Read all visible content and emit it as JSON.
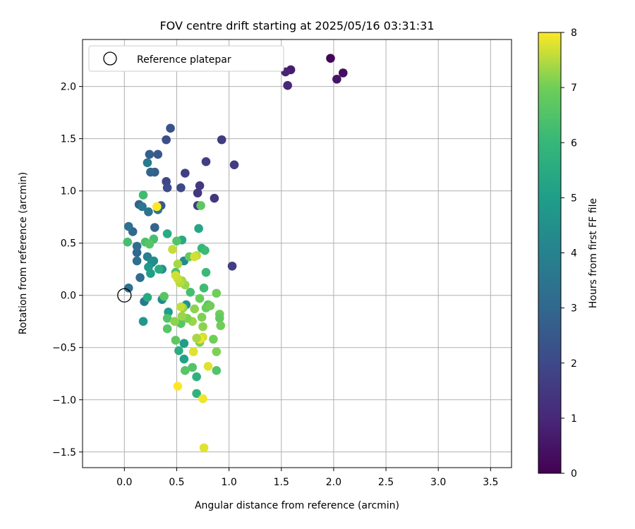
{
  "chart_data": {
    "type": "scatter",
    "title": "FOV centre drift starting at 2025/05/16 03:31:31",
    "xlabel": "Angular distance from reference (arcmin)",
    "ylabel": "Rotation from reference (arcmin)",
    "colorbar_label": "Hours from first FF file",
    "xlim": [
      -0.4,
      3.7
    ],
    "ylim": [
      -1.65,
      2.45
    ],
    "xticks": [
      "0.0",
      "0.5",
      "1.0",
      "1.5",
      "2.0",
      "2.5",
      "3.0",
      "3.5"
    ],
    "yticks": [
      "−1.5",
      "−1.0",
      "−0.5",
      "0.0",
      "0.5",
      "1.0",
      "1.5",
      "2.0"
    ],
    "colorbar_ticks": [
      "0",
      "1",
      "2",
      "3",
      "4",
      "5",
      "6",
      "7",
      "8"
    ],
    "colorbar_range": [
      0,
      8
    ],
    "colormap": "viridis",
    "grid": true,
    "legend": {
      "position": "top-left",
      "label": "Reference platepar"
    },
    "reference_point": {
      "x": 0.0,
      "y": 0.0
    },
    "points": [
      {
        "x": 1.97,
        "y": 2.27,
        "h": 0.1
      },
      {
        "x": 2.09,
        "y": 2.13,
        "h": 0.3
      },
      {
        "x": 2.03,
        "y": 2.07,
        "h": 0.5
      },
      {
        "x": 1.59,
        "y": 2.16,
        "h": 0.7
      },
      {
        "x": 1.54,
        "y": 2.14,
        "h": 0.9
      },
      {
        "x": 1.56,
        "y": 2.01,
        "h": 1.0
      },
      {
        "x": 0.93,
        "y": 1.49,
        "h": 1.6
      },
      {
        "x": 1.05,
        "y": 1.25,
        "h": 1.6
      },
      {
        "x": 0.78,
        "y": 1.28,
        "h": 1.7
      },
      {
        "x": 0.58,
        "y": 1.17,
        "h": 1.7
      },
      {
        "x": 0.72,
        "y": 1.05,
        "h": 1.5
      },
      {
        "x": 0.7,
        "y": 0.98,
        "h": 1.4
      },
      {
        "x": 0.86,
        "y": 0.93,
        "h": 1.4
      },
      {
        "x": 0.7,
        "y": 0.86,
        "h": 1.5
      },
      {
        "x": 1.03,
        "y": 0.28,
        "h": 1.6
      },
      {
        "x": 0.54,
        "y": 1.03,
        "h": 2.0
      },
      {
        "x": 0.4,
        "y": 1.09,
        "h": 1.9
      },
      {
        "x": 0.41,
        "y": 1.03,
        "h": 2.1
      },
      {
        "x": 0.44,
        "y": 1.6,
        "h": 2.3
      },
      {
        "x": 0.4,
        "y": 1.49,
        "h": 2.2
      },
      {
        "x": 0.32,
        "y": 1.35,
        "h": 2.5
      },
      {
        "x": 0.24,
        "y": 1.35,
        "h": 2.7
      },
      {
        "x": 0.29,
        "y": 1.18,
        "h": 2.7
      },
      {
        "x": 0.25,
        "y": 1.18,
        "h": 2.9
      },
      {
        "x": 0.35,
        "y": 0.86,
        "h": 2.5
      },
      {
        "x": 0.14,
        "y": 0.87,
        "h": 2.8
      },
      {
        "x": 0.29,
        "y": 0.65,
        "h": 2.9
      },
      {
        "x": 0.08,
        "y": 0.61,
        "h": 3.0
      },
      {
        "x": 0.12,
        "y": 0.41,
        "h": 3.0
      },
      {
        "x": 0.12,
        "y": 0.47,
        "h": 3.2
      },
      {
        "x": 0.12,
        "y": 0.33,
        "h": 3.3
      },
      {
        "x": 0.04,
        "y": 0.66,
        "h": 3.4
      },
      {
        "x": 0.15,
        "y": 0.17,
        "h": 3.2
      },
      {
        "x": 0.04,
        "y": 0.07,
        "h": 3.3
      },
      {
        "x": 0.23,
        "y": 0.8,
        "h": 3.5
      },
      {
        "x": 0.22,
        "y": 1.27,
        "h": 3.7
      },
      {
        "x": 0.17,
        "y": 0.85,
        "h": 3.5
      },
      {
        "x": 0.32,
        "y": 0.82,
        "h": 3.6
      },
      {
        "x": 0.19,
        "y": -0.06,
        "h": 3.6
      },
      {
        "x": 0.22,
        "y": 0.37,
        "h": 3.9
      },
      {
        "x": 0.26,
        "y": 0.31,
        "h": 4.2
      },
      {
        "x": 0.28,
        "y": 0.33,
        "h": 4.4
      },
      {
        "x": 0.36,
        "y": 0.25,
        "h": 4.5
      },
      {
        "x": 0.36,
        "y": -0.04,
        "h": 4.4
      },
      {
        "x": 0.57,
        "y": 0.33,
        "h": 4.3
      },
      {
        "x": 0.59,
        "y": -0.09,
        "h": 4.6
      },
      {
        "x": 0.18,
        "y": -0.25,
        "h": 4.8
      },
      {
        "x": 0.23,
        "y": 0.27,
        "h": 4.8
      },
      {
        "x": 0.25,
        "y": 0.21,
        "h": 5.0
      },
      {
        "x": 0.42,
        "y": -0.16,
        "h": 5.0
      },
      {
        "x": 0.57,
        "y": -0.46,
        "h": 5.0
      },
      {
        "x": 0.57,
        "y": -0.61,
        "h": 5.1
      },
      {
        "x": 0.41,
        "y": 0.59,
        "h": 5.5
      },
      {
        "x": 0.55,
        "y": 0.53,
        "h": 5.4
      },
      {
        "x": 0.71,
        "y": 0.64,
        "h": 5.3
      },
      {
        "x": 0.33,
        "y": 0.25,
        "h": 5.5
      },
      {
        "x": 0.22,
        "y": -0.02,
        "h": 5.4
      },
      {
        "x": 0.52,
        "y": -0.53,
        "h": 5.6
      },
      {
        "x": 0.69,
        "y": -0.78,
        "h": 5.7
      },
      {
        "x": 0.69,
        "y": -0.94,
        "h": 5.8
      },
      {
        "x": 0.74,
        "y": 0.45,
        "h": 5.9
      },
      {
        "x": 0.77,
        "y": 0.43,
        "h": 6.1
      },
      {
        "x": 0.78,
        "y": 0.22,
        "h": 6.1
      },
      {
        "x": 0.76,
        "y": 0.07,
        "h": 6.2
      },
      {
        "x": 0.63,
        "y": 0.03,
        "h": 6.3
      },
      {
        "x": 0.18,
        "y": 0.96,
        "h": 6.2
      },
      {
        "x": 0.03,
        "y": 0.51,
        "h": 6.3
      },
      {
        "x": 0.2,
        "y": 0.51,
        "h": 6.4
      },
      {
        "x": 0.28,
        "y": 0.54,
        "h": 6.3
      },
      {
        "x": 0.24,
        "y": 0.49,
        "h": 6.6
      },
      {
        "x": 0.5,
        "y": 0.52,
        "h": 6.5
      },
      {
        "x": 0.49,
        "y": 0.22,
        "h": 6.4
      },
      {
        "x": 0.38,
        "y": -0.01,
        "h": 6.6
      },
      {
        "x": 0.41,
        "y": -0.22,
        "h": 6.5
      },
      {
        "x": 0.41,
        "y": -0.32,
        "h": 6.6
      },
      {
        "x": 0.54,
        "y": -0.27,
        "h": 6.6
      },
      {
        "x": 0.49,
        "y": -0.43,
        "h": 6.7
      },
      {
        "x": 0.58,
        "y": -0.72,
        "h": 6.6
      },
      {
        "x": 0.65,
        "y": -0.69,
        "h": 6.5
      },
      {
        "x": 0.8,
        "y": -0.09,
        "h": 6.6
      },
      {
        "x": 0.88,
        "y": -0.72,
        "h": 6.5
      },
      {
        "x": 0.73,
        "y": 0.86,
        "h": 6.7
      },
      {
        "x": 0.62,
        "y": 0.37,
        "h": 6.8
      },
      {
        "x": 0.72,
        "y": -0.03,
        "h": 6.9
      },
      {
        "x": 0.78,
        "y": -0.12,
        "h": 6.9
      },
      {
        "x": 0.82,
        "y": -0.1,
        "h": 7.0
      },
      {
        "x": 0.88,
        "y": 0.02,
        "h": 7.0
      },
      {
        "x": 0.91,
        "y": -0.18,
        "h": 7.0
      },
      {
        "x": 0.91,
        "y": -0.22,
        "h": 6.8
      },
      {
        "x": 0.92,
        "y": -0.29,
        "h": 7.0
      },
      {
        "x": 0.88,
        "y": -0.54,
        "h": 7.1
      },
      {
        "x": 0.85,
        "y": -0.42,
        "h": 7.0
      },
      {
        "x": 0.74,
        "y": -0.21,
        "h": 7.1
      },
      {
        "x": 0.75,
        "y": -0.3,
        "h": 7.2
      },
      {
        "x": 0.72,
        "y": -0.45,
        "h": 7.1
      },
      {
        "x": 0.65,
        "y": -0.25,
        "h": 7.3
      },
      {
        "x": 0.6,
        "y": -0.22,
        "h": 7.1
      },
      {
        "x": 0.67,
        "y": -0.13,
        "h": 7.2
      },
      {
        "x": 0.56,
        "y": -0.12,
        "h": 7.2
      },
      {
        "x": 0.55,
        "y": -0.2,
        "h": 7.3
      },
      {
        "x": 0.48,
        "y": -0.25,
        "h": 7.2
      },
      {
        "x": 0.58,
        "y": 0.1,
        "h": 7.3
      },
      {
        "x": 0.55,
        "y": 0.14,
        "h": 7.4
      },
      {
        "x": 0.53,
        "y": 0.12,
        "h": 7.5
      },
      {
        "x": 0.51,
        "y": 0.3,
        "h": 7.4
      },
      {
        "x": 0.46,
        "y": 0.44,
        "h": 7.6
      },
      {
        "x": 0.69,
        "y": 0.38,
        "h": 7.5
      },
      {
        "x": 0.67,
        "y": 0.37,
        "h": 7.7
      },
      {
        "x": 0.51,
        "y": 0.16,
        "h": 7.6
      },
      {
        "x": 0.49,
        "y": 0.19,
        "h": 7.7
      },
      {
        "x": 0.75,
        "y": -0.4,
        "h": 7.7
      },
      {
        "x": 0.66,
        "y": -0.54,
        "h": 7.8
      },
      {
        "x": 0.8,
        "y": -0.68,
        "h": 7.8
      },
      {
        "x": 0.75,
        "y": -0.99,
        "h": 7.9
      },
      {
        "x": 0.76,
        "y": -1.46,
        "h": 7.8
      },
      {
        "x": 0.51,
        "y": -0.87,
        "h": 8.0
      },
      {
        "x": 0.31,
        "y": 0.85,
        "h": 8.0
      },
      {
        "x": 0.72,
        "y": -0.42,
        "h": 7.9
      },
      {
        "x": 0.54,
        "y": -0.11,
        "h": 7.6
      },
      {
        "x": 0.69,
        "y": -0.41,
        "h": 7.4
      }
    ]
  }
}
